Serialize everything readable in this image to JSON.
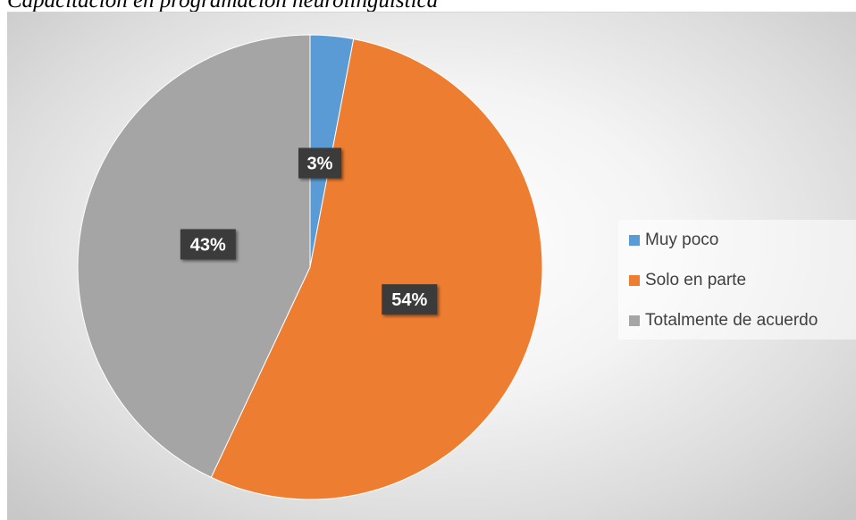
{
  "figure": {
    "caption": "Capacitación en programación neurolingüística"
  },
  "chart_data": {
    "type": "pie",
    "categories": [
      "Muy poco",
      "Solo en parte",
      "Totalmente de acuerdo"
    ],
    "values": [
      3,
      54,
      43
    ],
    "labels": [
      "3%",
      "54%",
      "43%"
    ],
    "colors": [
      "#5b9bd5",
      "#ed7d31",
      "#a5a5a5"
    ],
    "legend_position": "right",
    "data_label_style": "dark box, white bold text"
  }
}
